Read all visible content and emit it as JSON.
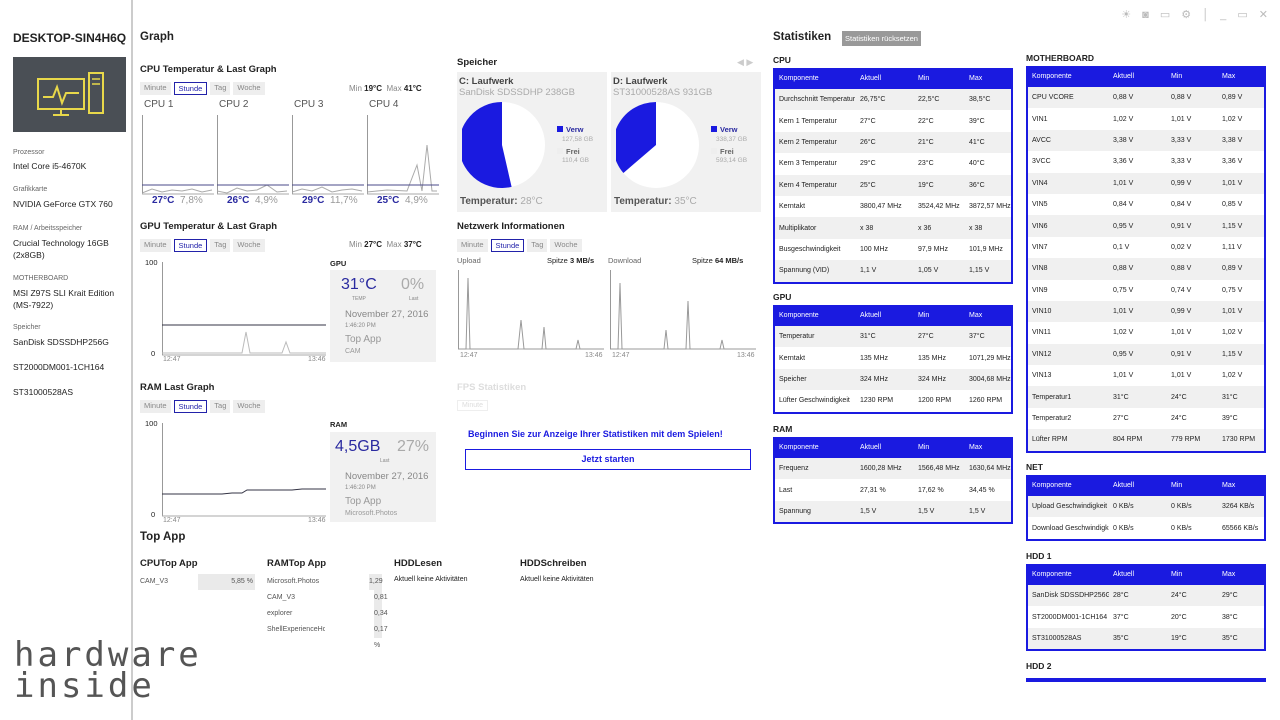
{
  "window": {
    "controls": "☀ ◙ ▭ ⚙ │ _ ▭ ✕"
  },
  "sidebar": {
    "computer_name": "DESKTOP-SIN4H6Q",
    "items": [
      {
        "label": "Prozessor",
        "value": "Intel Core i5-4670K"
      },
      {
        "label": "Grafikkarte",
        "value": "NVIDIA GeForce GTX 760"
      },
      {
        "label": "RAM / Arbeitsspeicher",
        "value": "Crucial Technology 16GB (2x8GB)"
      },
      {
        "label": "MOTHERBOARD",
        "value": "MSI Z97S SLI Krait Edition (MS-7922)"
      },
      {
        "label": "Speicher",
        "value": "SanDisk SDSSDHP256G"
      }
    ],
    "extra_storage": [
      "ST2000DM001-1CH164",
      "ST31000528AS"
    ],
    "watermark": "hardware inside"
  },
  "graph": {
    "title": "Graph",
    "tabs": [
      "Minute",
      "Stunde",
      "Tag",
      "Woche"
    ],
    "cpu": {
      "title": "CPU Temperatur & Last Graph",
      "min_label": "Min",
      "min": "19°C",
      "max_label": "Max",
      "max": "41°C",
      "cores": [
        {
          "name": "CPU 1",
          "temp": "27°C",
          "load": "7,8%"
        },
        {
          "name": "CPU 2",
          "temp": "26°C",
          "load": "4,9%"
        },
        {
          "name": "CPU 3",
          "temp": "29°C",
          "load": "11,7%"
        },
        {
          "name": "CPU 4",
          "temp": "25°C",
          "load": "4,9%"
        }
      ]
    },
    "gpu": {
      "title": "GPU Temperatur & Last Graph",
      "min_label": "Min",
      "min": "27°C",
      "max_label": "Max",
      "max": "37°C",
      "y_max": "100",
      "y_min": "0",
      "x_start": "12:47",
      "x_end": "13:46",
      "card": {
        "title": "GPU",
        "temp": "31°C",
        "temp_label": "TEMP",
        "load": "0%",
        "load_label": "Last",
        "date": "November 27, 2016",
        "time": "1:46:20 PM",
        "top_app_label": "Top App",
        "top_app": "CAM"
      }
    },
    "ram": {
      "title": "RAM Last Graph",
      "y_max": "100",
      "y_min": "0",
      "x_start": "12:47",
      "x_end": "13:46",
      "card": {
        "title": "RAM",
        "used": "4,5GB",
        "load": "27%",
        "load_label": "Last",
        "date": "November 27, 2016",
        "time": "1:46:20 PM",
        "top_app_label": "Top App",
        "top_app": "Microsoft.Photos"
      }
    }
  },
  "storage": {
    "title": "Speicher",
    "drives": [
      {
        "name": "C: Laufwerk",
        "model": "SanDisk SDSSDHP 238GB",
        "used_label": "Verw",
        "used": "127,58 GB",
        "free_label": "Frei",
        "free": "110,4 GB",
        "temp_label": "Temperatur:",
        "temp": "28°C",
        "used_fraction": 0.536
      },
      {
        "name": "D: Laufwerk",
        "model": "ST31000528AS 931GB",
        "used_label": "Verw",
        "used": "338,37 GB",
        "free_label": "Frei",
        "free": "593,14 GB",
        "temp_label": "Temperatur:",
        "temp": "35°C",
        "used_fraction": 0.363
      }
    ]
  },
  "network": {
    "title": "Netzwerk Informationen",
    "upload": "Upload",
    "download": "Download",
    "peak_label": "Spitze",
    "upload_peak": "3 MB/s",
    "download_peak": "64 MB/s",
    "x_start": "12:47",
    "x_end": "13:46"
  },
  "fps": {
    "title": "FPS Statistiken",
    "tab": "Minute",
    "message": "Beginnen Sie zur Anzeige Ihrer Statistiken mit dem Spielen!",
    "button": "Jetzt starten"
  },
  "topapp": {
    "title": "Top App",
    "cpu": {
      "title": "CPUTop App",
      "rows": [
        {
          "name": "CAM_V3",
          "value": "5,85 %",
          "fraction": 0.0585
        }
      ]
    },
    "ram": {
      "title": "RAMTop App",
      "rows": [
        {
          "name": "Microsoft.Photos",
          "value": "1,29 %",
          "fraction": 0.0129
        },
        {
          "name": "CAM_V3",
          "value": "0,81 %",
          "fraction": 0.0081
        },
        {
          "name": "explorer",
          "value": "0,34 %",
          "fraction": 0.0034
        },
        {
          "name": "ShellExperienceHos...",
          "value": "0,17 %",
          "fraction": 0.0017
        }
      ]
    },
    "hdd_read": {
      "title": "HDDLesen",
      "text": "Aktuell keine Aktivitäten"
    },
    "hdd_write": {
      "title": "HDDSchreiben",
      "text": "Aktuell keine Aktivitäten"
    }
  },
  "stats": {
    "title": "Statistiken",
    "reset": "Statistiken rücksetzen",
    "headers": [
      "Komponente",
      "Aktuell",
      "Min",
      "Max"
    ],
    "cpu": {
      "title": "CPU",
      "rows": [
        [
          "Durchschnitt Temperatur",
          "26,75°C",
          "22,5°C",
          "38,5°C"
        ],
        [
          "Kern 1 Temperatur",
          "27°C",
          "22°C",
          "39°C"
        ],
        [
          "Kern 2 Temperatur",
          "26°C",
          "21°C",
          "41°C"
        ],
        [
          "Kern 3 Temperatur",
          "29°C",
          "23°C",
          "40°C"
        ],
        [
          "Kern 4 Temperatur",
          "25°C",
          "19°C",
          "36°C"
        ],
        [
          "Kerntakt",
          "3800,47 MHz",
          "3524,42 MHz",
          "3872,57 MHz"
        ],
        [
          "Multiplikator",
          "x 38",
          "x 36",
          "x 38"
        ],
        [
          "Busgeschwindigkeit",
          "100 MHz",
          "97,9 MHz",
          "101,9 MHz"
        ],
        [
          "Spannung (VID)",
          "1,1 V",
          "1,05 V",
          "1,15 V"
        ]
      ]
    },
    "gpu": {
      "title": "GPU",
      "rows": [
        [
          "Temperatur",
          "31°C",
          "27°C",
          "37°C"
        ],
        [
          "Kerntakt",
          "135 MHz",
          "135 MHz",
          "1071,29 MHz"
        ],
        [
          "Speicher",
          "324 MHz",
          "324 MHz",
          "3004,68 MHz"
        ],
        [
          "Lüfter Geschwindigkeit",
          "1230 RPM",
          "1200 RPM",
          "1260 RPM"
        ]
      ]
    },
    "ram": {
      "title": "RAM",
      "rows": [
        [
          "Frequenz",
          "1600,28 MHz",
          "1566,48 MHz",
          "1630,64 MHz"
        ],
        [
          "Last",
          "27,31 %",
          "17,62 %",
          "34,45 %"
        ],
        [
          "Spannung",
          "1,5 V",
          "1,5 V",
          "1,5 V"
        ]
      ]
    },
    "mb": {
      "title": "MOTHERBOARD",
      "rows": [
        [
          "CPU VCORE",
          "0,88 V",
          "0,88 V",
          "0,89 V"
        ],
        [
          "VIN1",
          "1,02 V",
          "1,01 V",
          "1,02 V"
        ],
        [
          "AVCC",
          "3,38 V",
          "3,33 V",
          "3,38 V"
        ],
        [
          "3VCC",
          "3,36 V",
          "3,33 V",
          "3,36 V"
        ],
        [
          "VIN4",
          "1,01 V",
          "0,99 V",
          "1,01 V"
        ],
        [
          "VIN5",
          "0,84 V",
          "0,84 V",
          "0,85 V"
        ],
        [
          "VIN6",
          "0,95 V",
          "0,91 V",
          "1,15 V"
        ],
        [
          "VIN7",
          "0,1 V",
          "0,02 V",
          "1,11 V"
        ],
        [
          "VIN8",
          "0,88 V",
          "0,88 V",
          "0,89 V"
        ],
        [
          "VIN9",
          "0,75 V",
          "0,74 V",
          "0,75 V"
        ],
        [
          "VIN10",
          "1,01 V",
          "0,99 V",
          "1,01 V"
        ],
        [
          "VIN11",
          "1,02 V",
          "1,01 V",
          "1,02 V"
        ],
        [
          "VIN12",
          "0,95 V",
          "0,91 V",
          "1,15 V"
        ],
        [
          "VIN13",
          "1,01 V",
          "1,01 V",
          "1,02 V"
        ],
        [
          "Temperatur1",
          "31°C",
          "24°C",
          "31°C"
        ],
        [
          "Temperatur2",
          "27°C",
          "24°C",
          "39°C"
        ],
        [
          "Lüfter RPM",
          "804 RPM",
          "779 RPM",
          "1730 RPM"
        ]
      ]
    },
    "net": {
      "title": "NET",
      "rows": [
        [
          "Upload Geschwindigkeit",
          "0 KB/s",
          "0 KB/s",
          "3264 KB/s"
        ],
        [
          "Download Geschwindigkeit",
          "0 KB/s",
          "0 KB/s",
          "65566 KB/s"
        ]
      ]
    },
    "hdd1": {
      "title": "HDD 1",
      "rows": [
        [
          "SanDisk SDSSDHP256G",
          "28°C",
          "24°C",
          "29°C"
        ],
        [
          "ST2000DM001-1CH164",
          "37°C",
          "20°C",
          "38°C"
        ],
        [
          "ST31000528AS",
          "35°C",
          "19°C",
          "35°C"
        ]
      ]
    },
    "hdd2": {
      "title": "HDD 2"
    }
  }
}
